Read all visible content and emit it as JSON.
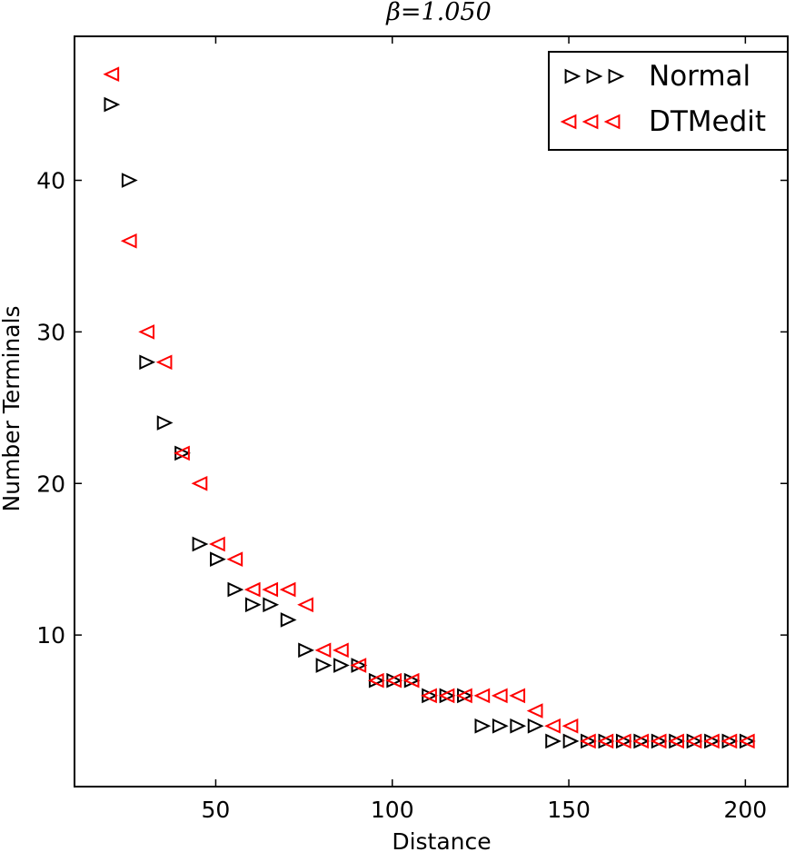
{
  "chart_data": {
    "type": "scatter",
    "title": "β=1.050",
    "xlabel": "Distance",
    "ylabel": "Number Terminals",
    "xlim": [
      10,
      212
    ],
    "ylim": [
      0,
      49.5
    ],
    "xticks": [
      50,
      100,
      150,
      200
    ],
    "yticks": [
      10,
      20,
      30,
      40
    ],
    "xtick_labels": [
      "50",
      "100",
      "150",
      "200"
    ],
    "ytick_labels": [
      "10",
      "20",
      "30",
      "40"
    ],
    "grid": false,
    "legend_position": "top-right",
    "series": [
      {
        "name": "Normal",
        "marker": "triangle-right",
        "color": "#000000",
        "points": [
          [
            20,
            45
          ],
          [
            25,
            40
          ],
          [
            30,
            28
          ],
          [
            35,
            24
          ],
          [
            40,
            22
          ],
          [
            45,
            16
          ],
          [
            50,
            15
          ],
          [
            55,
            13
          ],
          [
            60,
            12
          ],
          [
            65,
            12
          ],
          [
            70,
            11
          ],
          [
            75,
            9
          ],
          [
            80,
            8
          ],
          [
            85,
            8
          ],
          [
            90,
            8
          ],
          [
            95,
            7
          ],
          [
            100,
            7
          ],
          [
            105,
            7
          ],
          [
            110,
            6
          ],
          [
            115,
            6
          ],
          [
            120,
            6
          ],
          [
            125,
            4
          ],
          [
            130,
            4
          ],
          [
            135,
            4
          ],
          [
            140,
            4
          ],
          [
            145,
            3
          ],
          [
            150,
            3
          ],
          [
            155,
            3
          ],
          [
            160,
            3
          ],
          [
            165,
            3
          ],
          [
            170,
            3
          ],
          [
            175,
            3
          ],
          [
            180,
            3
          ],
          [
            185,
            3
          ],
          [
            190,
            3
          ],
          [
            195,
            3
          ],
          [
            200,
            3
          ]
        ]
      },
      {
        "name": "DTMedit",
        "marker": "triangle-left",
        "color": "#ff0000",
        "points": [
          [
            21,
            47
          ],
          [
            26,
            36
          ],
          [
            31,
            30
          ],
          [
            36,
            28
          ],
          [
            41,
            22
          ],
          [
            46,
            20
          ],
          [
            51,
            16
          ],
          [
            56,
            15
          ],
          [
            61,
            13
          ],
          [
            66,
            13
          ],
          [
            71,
            13
          ],
          [
            76,
            12
          ],
          [
            81,
            9
          ],
          [
            86,
            9
          ],
          [
            91,
            8
          ],
          [
            96,
            7
          ],
          [
            101,
            7
          ],
          [
            106,
            7
          ],
          [
            111,
            6
          ],
          [
            116,
            6
          ],
          [
            121,
            6
          ],
          [
            126,
            6
          ],
          [
            131,
            6
          ],
          [
            136,
            6
          ],
          [
            141,
            5
          ],
          [
            146,
            4
          ],
          [
            151,
            4
          ],
          [
            156,
            3
          ],
          [
            161,
            3
          ],
          [
            166,
            3
          ],
          [
            171,
            3
          ],
          [
            176,
            3
          ],
          [
            181,
            3
          ],
          [
            186,
            3
          ],
          [
            191,
            3
          ],
          [
            196,
            3
          ],
          [
            201,
            3
          ]
        ]
      }
    ]
  }
}
